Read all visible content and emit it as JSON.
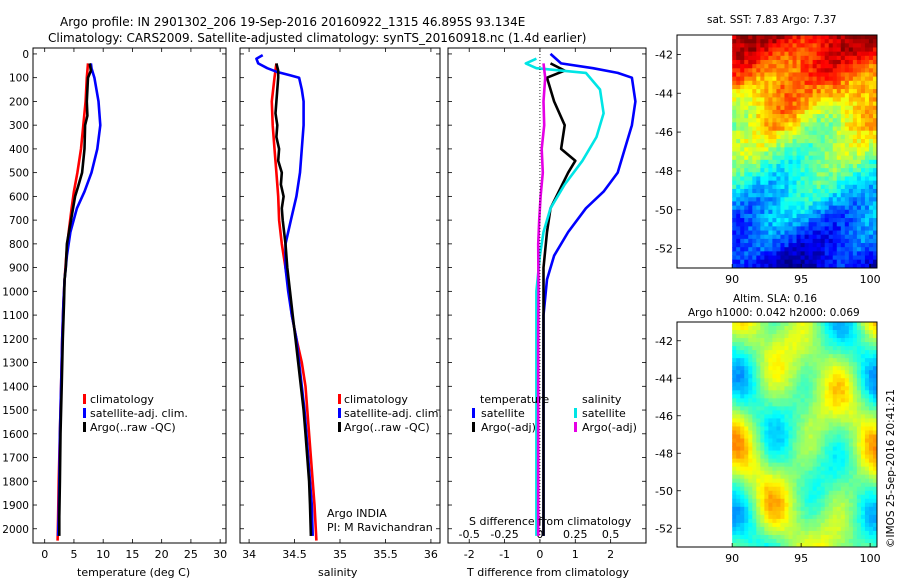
{
  "header": {
    "line1": "Argo profile: IN 2901302_206 19-Sep-2016 20160922_1315 46.895S 93.134E",
    "line2": "Climatology: CARS2009. Satellite-adjusted climatology: synTS_20160918.nc (1.4d earlier)"
  },
  "panels": {
    "temperature": {
      "xlabel": "temperature (deg C)",
      "xticks": [
        "0",
        "5",
        "10",
        "15",
        "20",
        "25",
        "30"
      ],
      "legend": [
        "climatology",
        "satellite-adj. clim.",
        "Argo(..raw -QC)"
      ]
    },
    "salinity": {
      "xlabel": "salinity",
      "xticks": [
        "34",
        "34.5",
        "35",
        "35.5",
        "36"
      ],
      "legend": [
        "climatology",
        "satellite-adj. clim.",
        "Argo(..raw -QC)"
      ],
      "note1": "Argo INDIA",
      "note2": "PI: M Ravichandran"
    },
    "difference": {
      "xlabel": "T difference from climatology",
      "xticks_T": [
        "-2",
        "-1",
        "0",
        "1",
        "2"
      ],
      "xlabel_S": "S difference from climatology",
      "xticks_S": [
        "-0.5",
        "-0.25",
        "0",
        "0.25",
        "0.5"
      ],
      "legend_temp_title": "temperature",
      "legend_sal_title": "salinity",
      "legend_temp": [
        "satellite",
        "Argo(-adj)"
      ],
      "legend_sal": [
        "satellite",
        "Argo(-adj)"
      ]
    }
  },
  "depth_ticks": [
    "0",
    "100",
    "200",
    "300",
    "400",
    "500",
    "600",
    "700",
    "800",
    "900",
    "1000",
    "1100",
    "1200",
    "1300",
    "1400",
    "1500",
    "1600",
    "1700",
    "1800",
    "1900",
    "2000"
  ],
  "maps": {
    "sst_title": "sat. SST: 7.83 Argo: 7.37",
    "sla_title1": "Altim. SLA: 0.16",
    "sla_title2": "Argo h1000: 0.042 h2000: 0.069",
    "lat_ticks": [
      "-42",
      "-44",
      "-46",
      "-48",
      "-50",
      "-52"
    ],
    "lon_ticks": [
      "90",
      "95",
      "100"
    ]
  },
  "footer_stamp": "©IMOS 25-Sep-2016 20:41:21",
  "colors": {
    "climatology": "#ff0000",
    "satellite": "#0000ff",
    "argo": "#000000",
    "sal_satellite": "#00e5e5",
    "sal_argo": "#e500e5"
  },
  "chart_data": [
    {
      "type": "line",
      "xlabel": "temperature (deg C)",
      "ylabel": "",
      "xlim": [
        -2,
        31
      ],
      "ylim": [
        2060,
        0
      ],
      "series": [
        {
          "name": "climatology",
          "points": [
            [
              7.4,
              40
            ],
            [
              7.2,
              100
            ],
            [
              7.0,
              200
            ],
            [
              6.6,
              300
            ],
            [
              6.2,
              400
            ],
            [
              5.6,
              500
            ],
            [
              5.0,
              580
            ],
            [
              4.6,
              650
            ],
            [
              4.1,
              750
            ],
            [
              3.7,
              850
            ],
            [
              3.4,
              950
            ],
            [
              3.2,
              1050
            ],
            [
              3.0,
              1200
            ],
            [
              2.8,
              1400
            ],
            [
              2.6,
              1600
            ],
            [
              2.4,
              1800
            ],
            [
              2.3,
              1950
            ],
            [
              2.2,
              2050
            ]
          ]
        },
        {
          "name": "satellite-adj. clim.",
          "points": [
            [
              7.9,
              40
            ],
            [
              8.0,
              60
            ],
            [
              8.5,
              100
            ],
            [
              9.2,
              200
            ],
            [
              9.5,
              300
            ],
            [
              9.0,
              400
            ],
            [
              8.0,
              500
            ],
            [
              6.8,
              580
            ],
            [
              5.5,
              650
            ],
            [
              4.4,
              750
            ],
            [
              3.8,
              850
            ],
            [
              3.4,
              950
            ],
            [
              3.2,
              1050
            ],
            [
              3.0,
              1200
            ],
            [
              2.8,
              1400
            ],
            [
              2.6,
              1600
            ],
            [
              2.5,
              1800
            ],
            [
              2.4,
              1950
            ],
            [
              2.3,
              2030
            ]
          ]
        },
        {
          "name": "Argo(..raw -QC)",
          "points": [
            [
              7.7,
              40
            ],
            [
              7.9,
              70
            ],
            [
              7.4,
              100
            ],
            [
              7.2,
              200
            ],
            [
              7.3,
              260
            ],
            [
              6.9,
              300
            ],
            [
              6.8,
              400
            ],
            [
              6.4,
              500
            ],
            [
              5.7,
              560
            ],
            [
              5.2,
              600
            ],
            [
              4.5,
              700
            ],
            [
              3.8,
              800
            ],
            [
              3.6,
              900
            ],
            [
              3.4,
              950
            ],
            [
              3.3,
              1050
            ],
            [
              3.1,
              1200
            ],
            [
              2.9,
              1400
            ],
            [
              2.7,
              1600
            ],
            [
              2.6,
              1800
            ],
            [
              2.5,
              1950
            ],
            [
              2.5,
              2030
            ]
          ]
        }
      ]
    },
    {
      "type": "line",
      "xlabel": "salinity",
      "ylabel": "",
      "xlim": [
        33.9,
        36.1
      ],
      "ylim": [
        2060,
        0
      ],
      "series": [
        {
          "name": "climatology",
          "points": [
            [
              34.3,
              40
            ],
            [
              34.28,
              100
            ],
            [
              34.25,
              200
            ],
            [
              34.26,
              300
            ],
            [
              34.28,
              400
            ],
            [
              34.3,
              500
            ],
            [
              34.32,
              600
            ],
            [
              34.33,
              700
            ],
            [
              34.36,
              800
            ],
            [
              34.4,
              900
            ],
            [
              34.44,
              1000
            ],
            [
              34.47,
              1100
            ],
            [
              34.52,
              1200
            ],
            [
              34.58,
              1300
            ],
            [
              34.62,
              1400
            ],
            [
              34.64,
              1500
            ],
            [
              34.66,
              1600
            ],
            [
              34.68,
              1700
            ],
            [
              34.7,
              1800
            ],
            [
              34.72,
              1900
            ],
            [
              34.74,
              2050
            ]
          ]
        },
        {
          "name": "satellite-adj. clim.",
          "points": [
            [
              34.15,
              5
            ],
            [
              34.08,
              20
            ],
            [
              34.1,
              40
            ],
            [
              34.2,
              60
            ],
            [
              34.3,
              75
            ],
            [
              34.45,
              90
            ],
            [
              34.55,
              100
            ],
            [
              34.58,
              150
            ],
            [
              34.6,
              200
            ],
            [
              34.6,
              300
            ],
            [
              34.58,
              400
            ],
            [
              34.56,
              500
            ],
            [
              34.52,
              600
            ],
            [
              34.46,
              700
            ],
            [
              34.4,
              800
            ],
            [
              34.4,
              900
            ],
            [
              34.43,
              1000
            ],
            [
              34.47,
              1100
            ],
            [
              34.52,
              1200
            ],
            [
              34.55,
              1300
            ],
            [
              34.58,
              1400
            ],
            [
              34.61,
              1500
            ],
            [
              34.63,
              1600
            ],
            [
              34.65,
              1700
            ],
            [
              34.67,
              1800
            ],
            [
              34.69,
              1900
            ],
            [
              34.7,
              2030
            ]
          ]
        },
        {
          "name": "Argo(..raw -QC)",
          "points": [
            [
              34.3,
              40
            ],
            [
              34.32,
              70
            ],
            [
              34.32,
              100
            ],
            [
              34.3,
              200
            ],
            [
              34.29,
              250
            ],
            [
              34.31,
              300
            ],
            [
              34.3,
              350
            ],
            [
              34.33,
              400
            ],
            [
              34.32,
              450
            ],
            [
              34.36,
              500
            ],
            [
              34.35,
              550
            ],
            [
              34.38,
              600
            ],
            [
              34.36,
              650
            ],
            [
              34.37,
              700
            ],
            [
              34.4,
              800
            ],
            [
              34.42,
              900
            ],
            [
              34.45,
              1000
            ],
            [
              34.48,
              1100
            ],
            [
              34.51,
              1200
            ],
            [
              34.54,
              1300
            ],
            [
              34.57,
              1400
            ],
            [
              34.6,
              1500
            ],
            [
              34.62,
              1600
            ],
            [
              34.64,
              1700
            ],
            [
              34.66,
              1800
            ],
            [
              34.67,
              1900
            ],
            [
              34.68,
              2030
            ]
          ]
        }
      ]
    },
    {
      "type": "line",
      "xlabel": "T difference from climatology",
      "ylabel": "",
      "xlim": [
        -2.6,
        3.0
      ],
      "ylim": [
        2060,
        0
      ],
      "series": [
        {
          "name": "temperature satellite",
          "points": [
            [
              0.3,
              0
            ],
            [
              0.6,
              40
            ],
            [
              1.5,
              60
            ],
            [
              2.2,
              80
            ],
            [
              2.6,
              100
            ],
            [
              2.7,
              200
            ],
            [
              2.6,
              300
            ],
            [
              2.4,
              400
            ],
            [
              2.2,
              500
            ],
            [
              1.8,
              580
            ],
            [
              1.3,
              650
            ],
            [
              0.8,
              750
            ],
            [
              0.4,
              850
            ],
            [
              0.2,
              950
            ],
            [
              0.1,
              1100
            ],
            [
              0.1,
              1300
            ],
            [
              0.1,
              1600
            ],
            [
              0.1,
              1900
            ],
            [
              0.1,
              2030
            ]
          ]
        },
        {
          "name": "temperature Argo(-adj)",
          "points": [
            [
              0.3,
              40
            ],
            [
              0.7,
              70
            ],
            [
              0.2,
              100
            ],
            [
              0.4,
              200
            ],
            [
              0.7,
              300
            ],
            [
              0.6,
              400
            ],
            [
              1.0,
              450
            ],
            [
              0.8,
              500
            ],
            [
              0.6,
              560
            ],
            [
              0.3,
              650
            ],
            [
              0.2,
              750
            ],
            [
              0.1,
              900
            ],
            [
              0.1,
              1100
            ],
            [
              0.1,
              1400
            ],
            [
              0.1,
              1700
            ],
            [
              0.1,
              2030
            ]
          ]
        },
        {
          "name": "salinity satellite",
          "points": [
            [
              -0.1,
              20
            ],
            [
              -0.4,
              40
            ],
            [
              -0.1,
              60
            ],
            [
              0.6,
              70
            ],
            [
              1.3,
              80
            ],
            [
              1.7,
              150
            ],
            [
              1.8,
              250
            ],
            [
              1.6,
              350
            ],
            [
              1.2,
              450
            ],
            [
              0.7,
              550
            ],
            [
              0.3,
              650
            ],
            [
              0.1,
              750
            ],
            [
              0.0,
              850
            ],
            [
              -0.1,
              1000
            ],
            [
              -0.1,
              1200
            ],
            [
              -0.1,
              1500
            ],
            [
              -0.1,
              1800
            ],
            [
              -0.1,
              2030
            ]
          ]
        },
        {
          "name": "salinity Argo(-adj)",
          "points": [
            [
              0.1,
              40
            ],
            [
              0.15,
              100
            ],
            [
              0.1,
              200
            ],
            [
              0.12,
              300
            ],
            [
              0.05,
              400
            ],
            [
              0.08,
              500
            ],
            [
              0.02,
              600
            ],
            [
              -0.02,
              700
            ],
            [
              -0.05,
              800
            ],
            [
              -0.04,
              1000
            ],
            [
              -0.05,
              1200
            ],
            [
              -0.05,
              1500
            ],
            [
              -0.05,
              1800
            ],
            [
              -0.05,
              2030
            ]
          ]
        }
      ]
    },
    {
      "type": "heatmap",
      "title": "sat. SST: 7.83 Argo: 7.37",
      "xlim": [
        86,
        100.5
      ],
      "ylim": [
        -53,
        -41
      ],
      "colorbar": "jet",
      "description_rows": [
        "warm orange/red in north",
        "yellow-green band",
        "green mid",
        "cyan/blue south"
      ]
    },
    {
      "type": "heatmap",
      "title": "Altim. SLA: 0.16",
      "xlim": [
        86,
        100.5
      ],
      "ylim": [
        -53,
        -41
      ],
      "colorbar": "jet"
    }
  ]
}
